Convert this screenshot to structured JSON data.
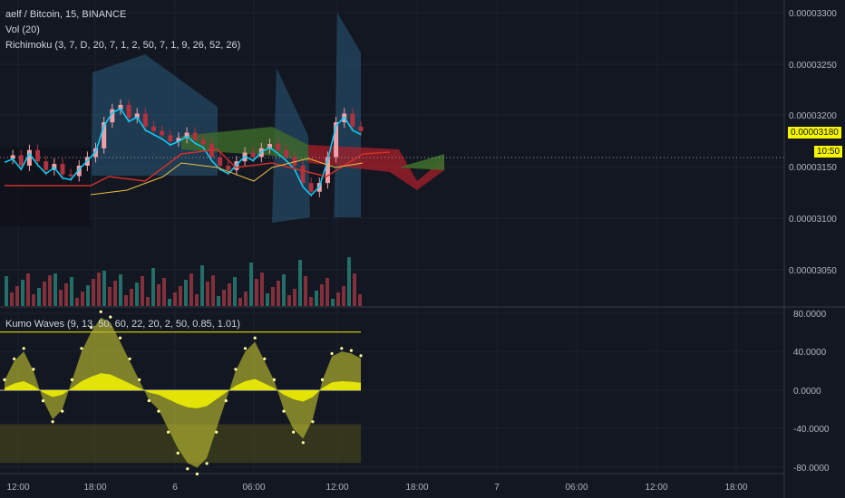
{
  "header": {
    "symbol_line": "aelf / Bitcoin, 15, BINANCE",
    "vol_line": "Vol (20)",
    "ichimoku_line": "Richimoku (3, 7, D, 20, 7, 1, 2, 50, 7, 1, 9, 26, 52, 26)"
  },
  "lower_pane": {
    "legend": "Kumo Waves (9, 13, 50, 60, 22, 20, 2, 50, 0.85, 1.01)"
  },
  "price_tag": {
    "price": "0.00003180",
    "countdown": "10:50"
  },
  "colors": {
    "background": "#131722",
    "grid": "#1e222d",
    "up": "#f0a0a8",
    "down": "#b0313f",
    "cloud": "#2a5a7a",
    "yellow": "#f5f500",
    "cyan": "#00d4ff",
    "red_line": "#d0302a",
    "green_cloud": "#3d6b2b"
  },
  "chart_data": [
    {
      "type": "line",
      "title": "",
      "y_axis_ticks": [
        "0.00003300",
        "0.00003250",
        "0.00003200",
        "0.00003150",
        "0.00003100",
        "0.00003050"
      ],
      "x_axis_ticks": [
        "12:00",
        "18:00",
        "6",
        "06:00",
        "12:00",
        "18:00",
        "7",
        "06:00",
        "12:00",
        "18:00"
      ],
      "ylim": [
        3.02e-05,
        3.31e-05
      ],
      "series": [
        {
          "values": [
            3.148,
            3.152,
            3.14,
            3.158,
            3.145,
            3.135,
            3.142,
            3.13,
            3.128,
            3.14,
            3.15,
            3.16,
            3.19,
            3.205,
            3.21,
            3.195,
            3.2,
            3.185,
            3.18,
            3.175,
            3.168,
            3.172,
            3.178,
            3.17,
            3.165,
            3.15,
            3.14,
            3.135,
            3.145,
            3.155,
            3.15,
            3.16,
            3.165,
            3.158,
            3.15,
            3.14,
            3.12,
            3.11,
            3.12,
            3.15,
            3.19,
            3.2,
            3.185,
            3.18
          ]
        }
      ]
    },
    {
      "type": "area",
      "title": "",
      "y_axis_ticks": [
        "80.0000",
        "40.0000",
        "0.0000",
        "-40.0000",
        "-80.0000"
      ],
      "ylim": [
        -85,
        85
      ],
      "series": [
        {
          "values": [
            10,
            30,
            40,
            20,
            -10,
            -30,
            -20,
            10,
            40,
            60,
            75,
            70,
            50,
            30,
            10,
            -10,
            -20,
            -40,
            -60,
            -75,
            -80,
            -70,
            -40,
            -10,
            20,
            40,
            50,
            30,
            10,
            -20,
            -40,
            -50,
            -30,
            10,
            35,
            40,
            38,
            33
          ]
        }
      ]
    }
  ]
}
